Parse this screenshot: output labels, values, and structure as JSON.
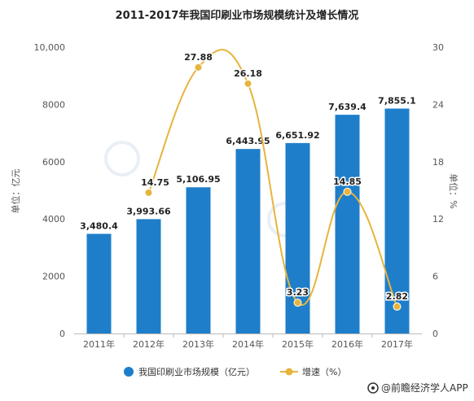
{
  "chart_data": {
    "type": "bar",
    "title": "2011-2017年我国印刷业市场规模统计及增长情况",
    "categories": [
      "2011年",
      "2012年",
      "2013年",
      "2014年",
      "2015年",
      "2016年",
      "2017年"
    ],
    "series": [
      {
        "name": "我国印刷业市场规模（亿元）",
        "type": "bar",
        "axis": "left",
        "values": [
          3480.4,
          3993.66,
          5106.95,
          6443.95,
          6651.92,
          7639.4,
          7855.1
        ],
        "labels": [
          "3,480.4",
          "3,993.66",
          "5,106.95",
          "6,443.95",
          "6,651.92",
          "7,639.4",
          "7,855.1"
        ]
      },
      {
        "name": "增速（%）",
        "type": "line",
        "axis": "right",
        "values": [
          null,
          14.75,
          27.88,
          26.18,
          3.23,
          14.85,
          2.82
        ],
        "labels": [
          "",
          "14.75",
          "27.88",
          "26.18",
          "3.23",
          "14.85",
          "2.82"
        ]
      }
    ],
    "ylabel": "单位：亿元",
    "y2label": "单位：%",
    "ylim": [
      0,
      10000
    ],
    "y2lim": [
      0,
      30
    ],
    "yticks": [
      "0",
      "2000",
      "4000",
      "6000",
      "8000",
      "10,000"
    ],
    "y2ticks": [
      "0",
      "6",
      "12",
      "18",
      "24",
      "30"
    ],
    "grid": false,
    "legend_position": "bottom",
    "colors": {
      "bar": "#1f7ec9",
      "line": "#e7b43c",
      "marker_fill": "#e7b43c"
    }
  },
  "source_text": "@前瞻经济学人APP"
}
